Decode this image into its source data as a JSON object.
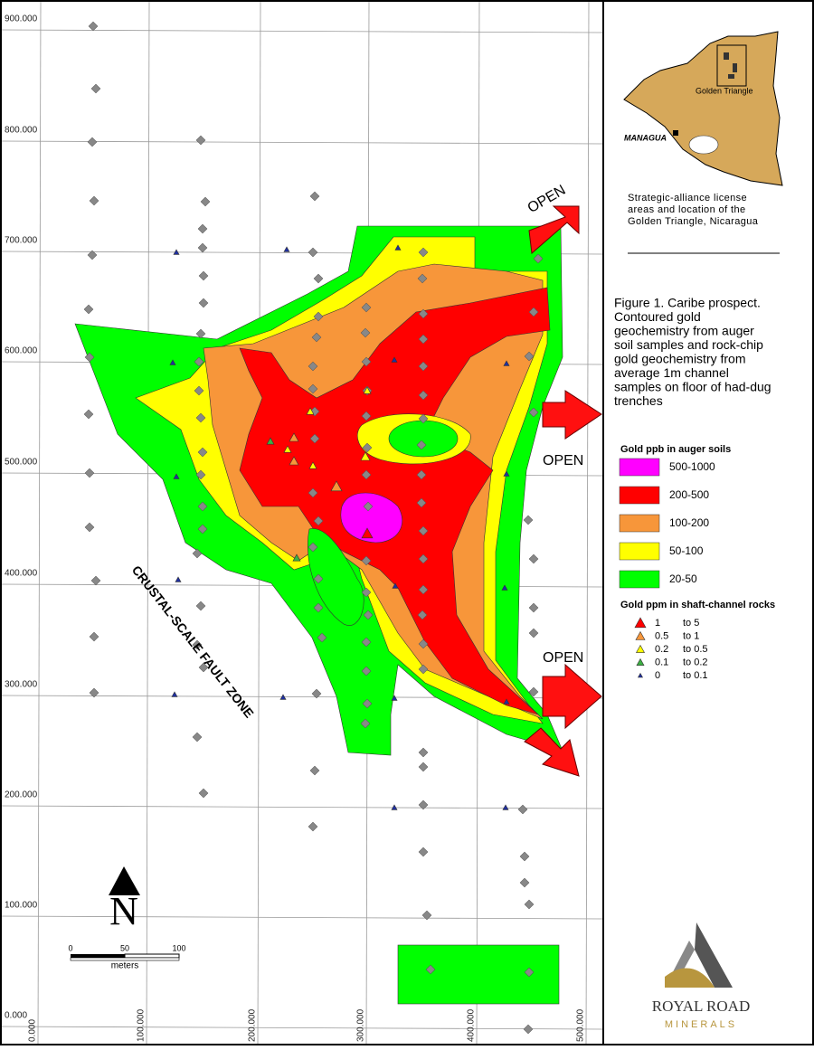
{
  "map": {
    "y_labels": [
      "900.000",
      "800.000",
      "700.000",
      "600.000",
      "500.000",
      "400.000",
      "300.000",
      "200.000",
      "100.000",
      "0.000"
    ],
    "x_labels": [
      "0.000",
      "100.000",
      "200.000",
      "300.000",
      "400.000",
      "500.000"
    ],
    "open_labels": [
      "OPEN",
      "OPEN",
      "OPEN"
    ],
    "fault_zone": "CRUSTAL-SCALE FAULT ZONE",
    "north": "N",
    "scale_bar": {
      "ticks": [
        "0",
        "50",
        "100"
      ],
      "unit": "meters"
    }
  },
  "inset": {
    "region_label": "Golden Triangle",
    "city": "MANAGUA",
    "caption": [
      "Strategic-alliance license",
      "areas and location of the",
      "Golden Triangle, Nicaragua"
    ]
  },
  "figure_caption": [
    "Figure 1. Caribe prospect.",
    "Contoured gold",
    "geochemistry from auger",
    "soil samples and rock-chip",
    "gold geochemistry from",
    "average 1m channel",
    "samples on floor of had-dug",
    "trenches"
  ],
  "legend": {
    "soils": {
      "title": "Gold ppb in auger soils",
      "items": [
        {
          "label": "500-1000",
          "color": "#ff00ff"
        },
        {
          "label": "200-500",
          "color": "#ff0000"
        },
        {
          "label": "100-200",
          "color": "#f7963a"
        },
        {
          "label": "50-100",
          "color": "#ffff00"
        },
        {
          "label": "20-50",
          "color": "#00ff00"
        }
      ]
    },
    "rocks": {
      "title": "Gold ppm in shaft-channel rocks",
      "items": [
        {
          "low": "1",
          "high": "to  5",
          "color": "#ff0000"
        },
        {
          "low": "0.5",
          "high": "to  1",
          "color": "#f7963a"
        },
        {
          "low": "0.2",
          "high": "to  0.5",
          "color": "#ffff00"
        },
        {
          "low": "0.1",
          "high": "to  0.2",
          "color": "#3cb043"
        },
        {
          "low": "0",
          "high": "to  0.1",
          "color": "#1f2fa0"
        }
      ]
    }
  },
  "logo": {
    "name": "ROYAL ROAD",
    "subtitle": "MINERALS"
  }
}
